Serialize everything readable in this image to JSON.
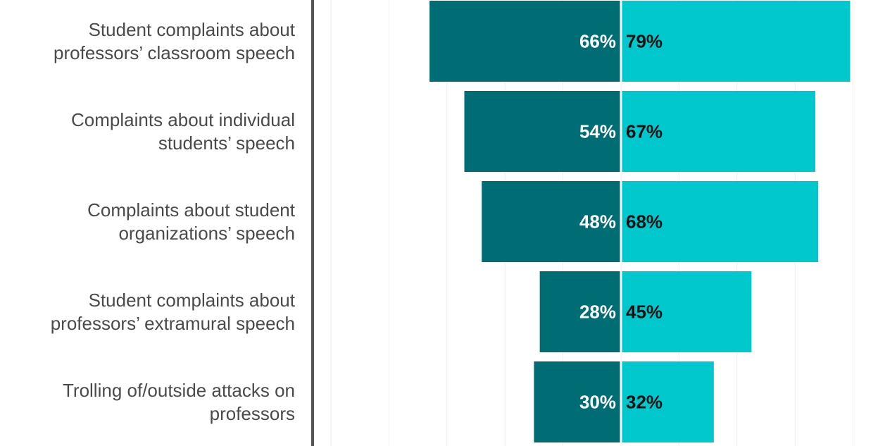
{
  "chart_data": {
    "type": "bar",
    "orientation": "diverging-horizontal",
    "categories": [
      [
        "Student complaints about",
        "professors’ classroom speech"
      ],
      [
        "Complaints about individual",
        "students’ speech"
      ],
      [
        "Complaints about student",
        "organizations’ speech"
      ],
      [
        "Student complaints about",
        "professors’ extramural speech"
      ],
      [
        "Trolling of/outside attacks on",
        "professors"
      ]
    ],
    "series": [
      {
        "name": "left",
        "color": "#006d75",
        "label_color": "#ffffff",
        "values": [
          66,
          54,
          48,
          28,
          30
        ],
        "labels": [
          "66%",
          "54%",
          "48%",
          "28%",
          "30%"
        ]
      },
      {
        "name": "right",
        "color": "#00c8cc",
        "label_color": "#111111",
        "values": [
          79,
          67,
          68,
          45,
          32
        ],
        "labels": [
          "79%",
          "67%",
          "68%",
          "45%",
          "32%"
        ]
      }
    ],
    "value_unit": "%",
    "axis_range": [
      0,
      100
    ],
    "grid": true,
    "legend": "none",
    "axis_line_color": "#555555",
    "gridline_color": "#eeeeee"
  }
}
